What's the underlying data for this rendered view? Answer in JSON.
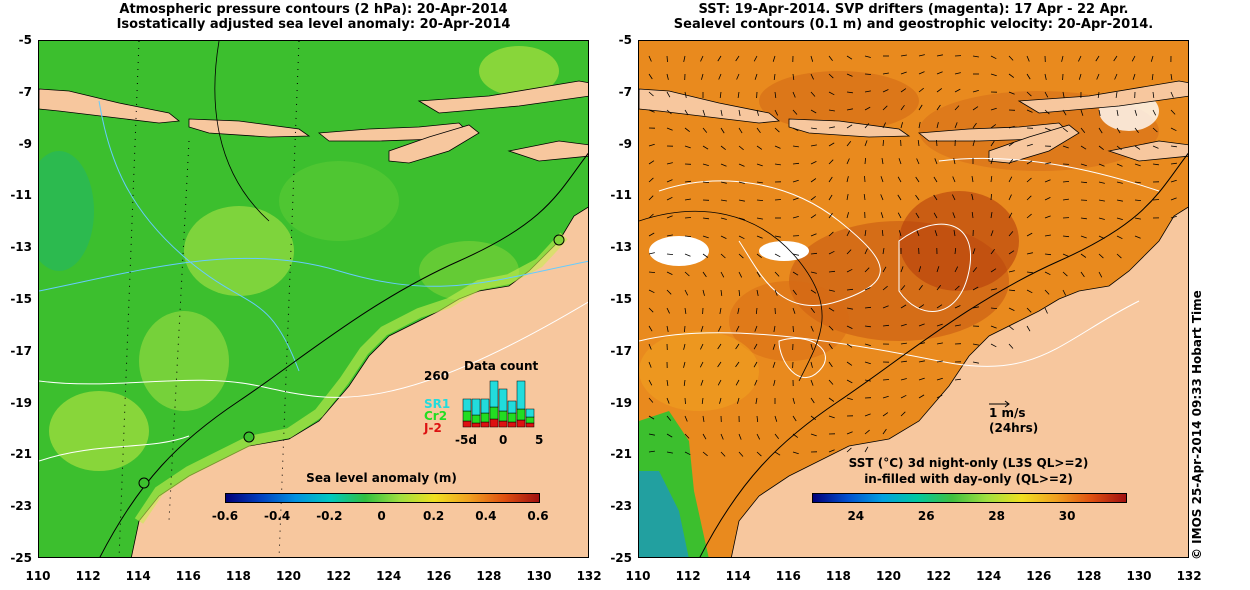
{
  "left": {
    "title_line1": "Atmospheric pressure contours (2 hPa): 20-Apr-2014",
    "title_line2": "Isostatically adjusted sea level anomaly: 20-Apr-2014",
    "colorbar_label": "Sea level anomaly (m)",
    "colorbar_ticks": [
      "-0.6",
      "-0.4",
      "-0.2",
      "0",
      "0.2",
      "0.4",
      "0.6"
    ],
    "inset": {
      "title": "Data count",
      "count": "260",
      "legend": [
        {
          "label": "SR1",
          "color": "#22dcdc"
        },
        {
          "label": "Cr2",
          "color": "#22dd22"
        },
        {
          "label": "J-2",
          "color": "#dd1111"
        }
      ],
      "xticks": [
        "-5d",
        "0",
        "5"
      ]
    }
  },
  "right": {
    "title_line1": "SST: 19-Apr-2014. SVP drifters (magenta): 17 Apr - 22 Apr.",
    "title_line2": "Sealevel contours (0.1 m) and geostrophic velocity: 20-Apr-2014.",
    "colorbar_label_line1": "SST (°C)  3d night-only (L3S QL>=2)",
    "colorbar_label_line2": "in-filled with day-only (QL>=2)",
    "colorbar_ticks": [
      "24",
      "26",
      "28",
      "30"
    ],
    "scale_label": "1 m/s",
    "scale_sub": "(24hrs)"
  },
  "axes": {
    "lat_ticks": [
      "-5",
      "-7",
      "-9",
      "-11",
      "-13",
      "-15",
      "-17",
      "-19",
      "-21",
      "-23",
      "-25"
    ],
    "lon_ticks": [
      "110",
      "112",
      "114",
      "116",
      "118",
      "120",
      "122",
      "124",
      "126",
      "128",
      "130",
      "132"
    ]
  },
  "copyright": "© IMOS 25-Apr-2014 09:33 Hobart Time",
  "colors": {
    "land": "#f7c79e",
    "sla_green": "#3cbf2e",
    "sst_orange": "#e98a1e"
  }
}
